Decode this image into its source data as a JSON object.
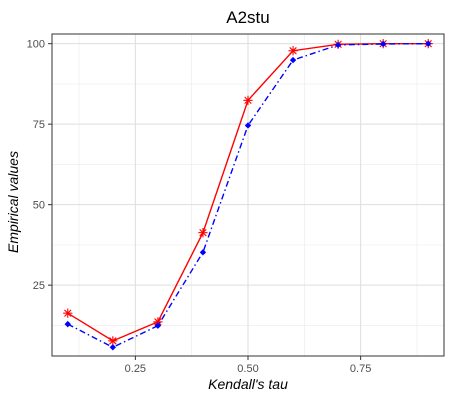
{
  "chart_data": {
    "type": "line",
    "title": "A2stu",
    "xlabel": "Kendall's tau",
    "ylabel": "Empirical values",
    "xlim": [
      0.065,
      0.935
    ],
    "ylim": [
      3,
      103
    ],
    "x_ticks": [
      0.25,
      0.5,
      0.75
    ],
    "x_tick_labels": [
      "0.25",
      "0.50",
      "0.75"
    ],
    "y_ticks": [
      25,
      50,
      75,
      100
    ],
    "y_tick_labels": [
      "25",
      "50",
      "75",
      "100"
    ],
    "grid": true,
    "legend": "none",
    "x": [
      0.1,
      0.2,
      0.3,
      0.4,
      0.5,
      0.6,
      0.7,
      0.8,
      0.9
    ],
    "series": [
      {
        "color": "#ff0000",
        "line_style": "solid",
        "marker": "asterisk",
        "values": [
          16.3,
          7.7,
          13.6,
          41.3,
          82.4,
          97.8,
          99.8,
          100,
          100
        ]
      },
      {
        "color": "#0000ff",
        "line_style": "dashdot",
        "marker": "diamond",
        "values": [
          12.9,
          5.7,
          12.4,
          35.2,
          74.6,
          94.9,
          99.6,
          99.9,
          100
        ]
      }
    ]
  }
}
